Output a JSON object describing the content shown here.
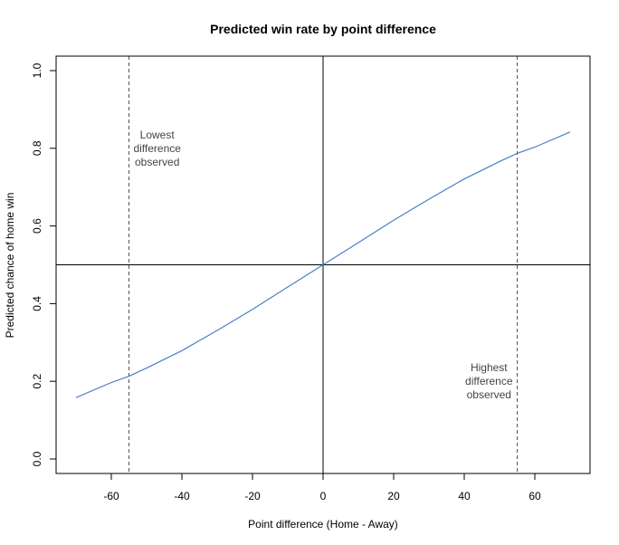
{
  "chart_data": {
    "type": "line",
    "title": "Predicted win rate by point difference",
    "xlabel": "Point difference (Home - Away)",
    "ylabel": "Predicted chance of home win",
    "xlim": [
      -75,
      75
    ],
    "ylim": [
      0,
      1
    ],
    "xticks": [
      -60,
      -40,
      -20,
      0,
      20,
      40,
      60
    ],
    "xtick_labels": [
      "-60",
      "-40",
      "-20",
      "0",
      "20",
      "40",
      "60"
    ],
    "yticks": [
      0,
      0.2,
      0.4,
      0.6,
      0.8,
      1
    ],
    "ytick_labels": [
      "0.0",
      "0.2",
      "0.4",
      "0.6",
      "0.8",
      "1.0"
    ],
    "grid": false,
    "series": [
      {
        "color": "#4a7fc9",
        "x": [
          -70,
          -60,
          -55,
          -50,
          -40,
          -30,
          -20,
          -10,
          0,
          10,
          20,
          30,
          40,
          50,
          55,
          60,
          70
        ],
        "y": [
          0.158,
          0.197,
          0.213,
          0.234,
          0.279,
          0.331,
          0.385,
          0.443,
          0.5,
          0.557,
          0.615,
          0.669,
          0.721,
          0.766,
          0.787,
          0.803,
          0.842
        ]
      }
    ],
    "reference_lines": {
      "horizontal": [
        {
          "y": 0.5,
          "color": "#000000",
          "style": "solid"
        }
      ],
      "vertical": [
        {
          "x": 0,
          "color": "#000000",
          "style": "solid"
        },
        {
          "x": -55,
          "color": "#555555",
          "style": "dashed"
        },
        {
          "x": 55,
          "color": "#555555",
          "style": "dashed"
        }
      ]
    },
    "annotations": [
      {
        "lines": [
          "Lowest",
          "difference",
          "observed"
        ],
        "x": -47,
        "y": 0.8
      },
      {
        "lines": [
          "Highest",
          "difference",
          "observed"
        ],
        "x": 47,
        "y": 0.2
      }
    ]
  }
}
